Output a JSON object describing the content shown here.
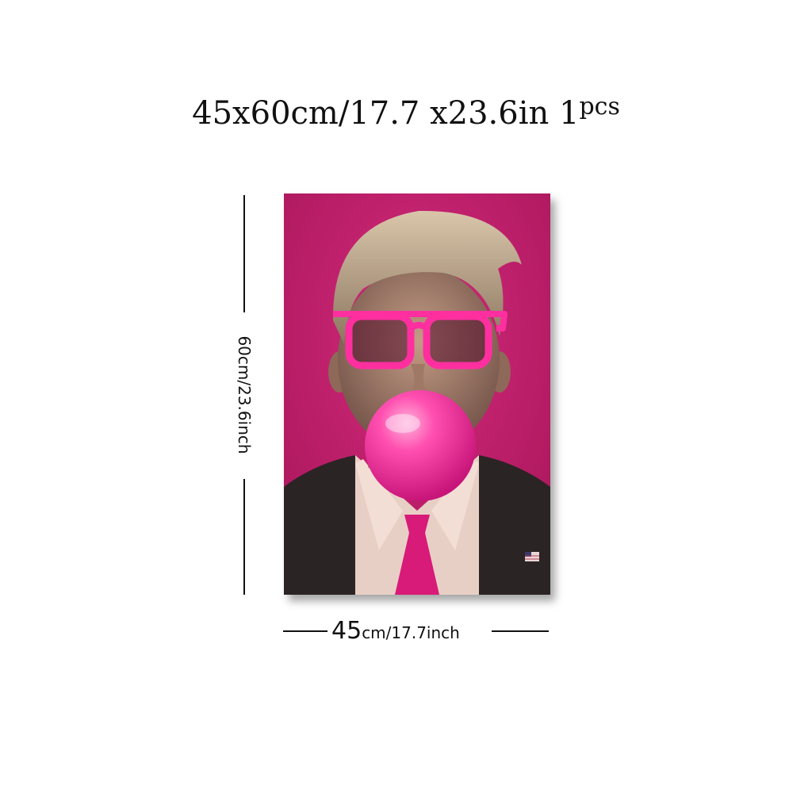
{
  "headline": {
    "main": "45x60cm/17.7 x23.6in 1",
    "suffix": "pcs"
  },
  "dimensions": {
    "height_label": "60cm/23.6inch",
    "width_big": "45",
    "width_small": "cm/17.7inch"
  },
  "colors": {
    "background": "#c81d6e",
    "glasses": "#ff2fa0",
    "bubble": "#ff3aa6",
    "suit": "#2b2424",
    "shirt": "#e8cfc6",
    "tie": "#d81a78",
    "hair": "#c9b69c",
    "skin": "#b08a78"
  },
  "icons": {
    "flag_pin": "flag-pin-icon"
  }
}
